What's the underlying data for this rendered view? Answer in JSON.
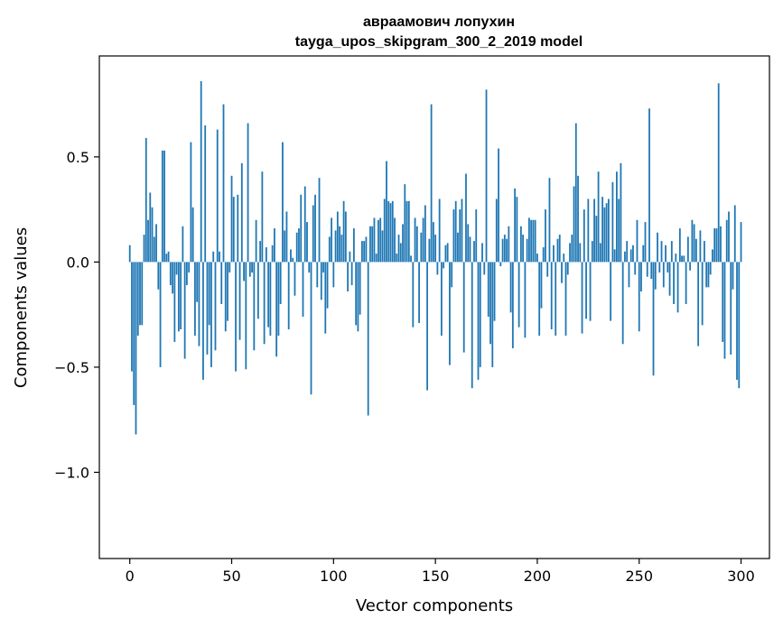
{
  "chart_data": {
    "type": "bar",
    "title_line1": "авраамович лопухин",
    "title_line2": "tayga_upos_skipgram_300_2_2019 model",
    "xlabel": "Vector components",
    "ylabel": "Components values",
    "xlim": [
      -14.95,
      313.95
    ],
    "ylim": [
      -1.41,
      0.98
    ],
    "x_ticks": [
      0,
      50,
      100,
      150,
      200,
      250,
      300
    ],
    "y_ticks": [
      0.5,
      0.0,
      -0.5,
      -1.0
    ],
    "y_tick_labels": [
      "0.5",
      "0.0",
      "−0.5",
      "−1.0"
    ],
    "bar_color": "#1f77b4",
    "values": [
      0.08,
      -0.52,
      -0.68,
      -0.82,
      -0.35,
      -0.3,
      -0.3,
      0.13,
      0.59,
      0.2,
      0.33,
      0.26,
      0.12,
      0.18,
      -0.13,
      -0.5,
      0.53,
      0.53,
      0.04,
      0.05,
      -0.11,
      -0.15,
      -0.38,
      -0.06,
      -0.33,
      -0.32,
      0.17,
      -0.46,
      -0.11,
      -0.05,
      0.57,
      0.26,
      -0.35,
      -0.19,
      -0.4,
      0.86,
      -0.56,
      0.65,
      -0.44,
      -0.3,
      -0.5,
      0.05,
      -0.42,
      0.63,
      0.05,
      -0.2,
      0.75,
      -0.33,
      -0.28,
      -0.05,
      0.41,
      0.31,
      -0.52,
      0.32,
      -0.37,
      0.47,
      -0.09,
      -0.51,
      0.66,
      -0.07,
      -0.05,
      -0.42,
      0.2,
      -0.27,
      0.1,
      0.43,
      -0.39,
      0.07,
      -0.31,
      -0.35,
      0.08,
      0.16,
      -0.45,
      -0.35,
      -0.2,
      0.57,
      0.15,
      0.24,
      -0.32,
      0.06,
      0.02,
      -0.16,
      0.14,
      0.16,
      0.32,
      -0.26,
      0.36,
      0.19,
      -0.05,
      -0.63,
      0.27,
      0.32,
      -0.12,
      0.4,
      -0.18,
      -0.05,
      -0.34,
      -0.22,
      0.12,
      0.21,
      -0.12,
      0.15,
      0.24,
      0.17,
      0.13,
      0.29,
      0.24,
      -0.14,
      0.05,
      -0.11,
      0.16,
      -0.3,
      -0.33,
      -0.25,
      0.1,
      0.1,
      0.12,
      -0.73,
      0.17,
      0.17,
      0.21,
      0.04,
      0.2,
      0.21,
      0.15,
      0.3,
      0.48,
      0.29,
      0.28,
      0.29,
      0.21,
      0.04,
      0.13,
      0.09,
      0.18,
      0.37,
      0.29,
      0.29,
      0.03,
      -0.31,
      0.21,
      0.17,
      -0.29,
      0.14,
      0.21,
      0.27,
      -0.61,
      0.11,
      0.75,
      0.19,
      0.13,
      -0.06,
      0.3,
      -0.35,
      -0.03,
      0.08,
      0.09,
      -0.49,
      -0.12,
      0.25,
      0.29,
      0.14,
      0.25,
      0.3,
      -0.43,
      0.42,
      0.18,
      0.12,
      -0.6,
      0.1,
      0.25,
      -0.56,
      -0.5,
      0.09,
      -0.06,
      0.82,
      -0.26,
      -0.39,
      -0.5,
      -0.28,
      0.3,
      0.54,
      -0.02,
      0.11,
      0.13,
      0.11,
      0.17,
      -0.24,
      -0.41,
      0.35,
      0.31,
      -0.31,
      0.17,
      0.13,
      -0.36,
      0.11,
      0.21,
      0.2,
      0.2,
      0.2,
      0.04,
      -0.35,
      -0.22,
      0.07,
      0.25,
      -0.07,
      0.4,
      -0.32,
      0.08,
      -0.35,
      0.11,
      0.13,
      -0.1,
      0.04,
      -0.35,
      -0.06,
      0.09,
      0.13,
      0.36,
      0.66,
      0.41,
      0.09,
      -0.34,
      0.25,
      -0.27,
      0.3,
      -0.28,
      0.1,
      0.3,
      0.22,
      0.43,
      0.09,
      0.31,
      0.26,
      0.28,
      0.3,
      -0.28,
      0.38,
      0.06,
      0.43,
      0.3,
      0.47,
      -0.39,
      0.05,
      0.1,
      -0.12,
      0.06,
      0.08,
      -0.06,
      0.2,
      -0.33,
      -0.14,
      0.08,
      0.19,
      -0.07,
      0.73,
      -0.08,
      -0.54,
      -0.13,
      0.14,
      -0.05,
      0.1,
      -0.12,
      0.08,
      -0.05,
      -0.16,
      0.1,
      -0.2,
      0.04,
      -0.24,
      0.16,
      0.03,
      0.03,
      -0.2,
      0.12,
      -0.04,
      0.2,
      0.18,
      0.11,
      -0.4,
      0.15,
      -0.3,
      0.1,
      -0.12,
      -0.12,
      -0.06,
      0.06,
      0.16,
      0.16,
      0.85,
      0.17,
      -0.38,
      -0.46,
      0.2,
      0.24,
      -0.44,
      -0.13,
      0.27,
      -0.56,
      -0.6,
      0.19
    ]
  }
}
